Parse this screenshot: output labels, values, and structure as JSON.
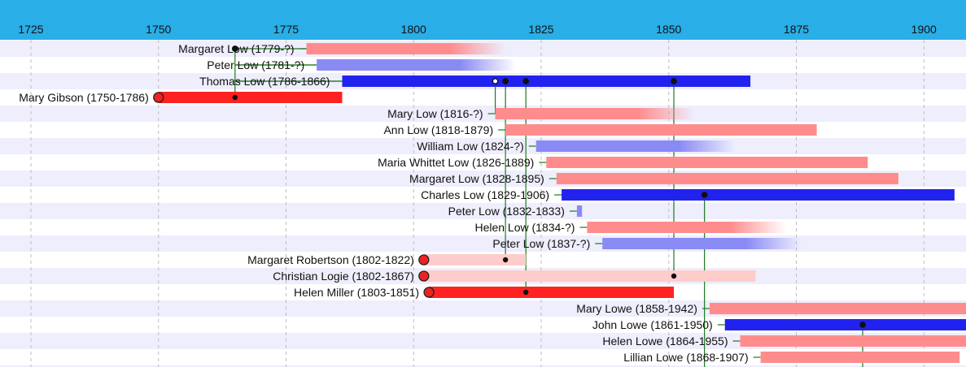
{
  "chart_data": {
    "type": "timeline",
    "title": "",
    "xlabel": "",
    "ylabel": "",
    "x_ticks": [
      "1725",
      "1750",
      "1775",
      "1800",
      "1825",
      "1850",
      "1875",
      "1900"
    ],
    "colors": {
      "header": "#29aee8",
      "male": "#2222ee",
      "male_light": "#8a8af5",
      "female": "#ff2222",
      "female_light": "#ff8c8c",
      "female_pale": "#ffcccc",
      "row_alt": "#eeeefd",
      "connector": "#1e7a1e"
    },
    "people": [
      {
        "label": "Margaret Low (1779-?)",
        "start": 1779,
        "end": 1818,
        "color": "female_light",
        "open_end": true
      },
      {
        "label": "Peter Low (1781-?)",
        "start": 1781,
        "end": 1820,
        "color": "male_light",
        "open_end": true
      },
      {
        "label": "Thomas Low (1786-1866)",
        "start": 1786,
        "end": 1866,
        "color": "male"
      },
      {
        "label": "Mary Gibson (1750-1786)",
        "start": 1750,
        "end": 1786,
        "color": "female",
        "marker": "start"
      },
      {
        "label": "Mary Low (1816-?)",
        "start": 1816,
        "end": 1855,
        "color": "female_light",
        "open_end": true
      },
      {
        "label": "Ann Low (1818-1879)",
        "start": 1818,
        "end": 1879,
        "color": "female_light"
      },
      {
        "label": "William Low (1824-?)",
        "start": 1824,
        "end": 1863,
        "color": "male_light",
        "open_end": true
      },
      {
        "label": "Maria Whittet Low (1826-1889)",
        "start": 1826,
        "end": 1889,
        "color": "female_light"
      },
      {
        "label": "Margaret Low (1828-1895)",
        "start": 1828,
        "end": 1895,
        "color": "female_light"
      },
      {
        "label": "Charles Low (1829-1906)",
        "start": 1829,
        "end": 1906,
        "color": "male"
      },
      {
        "label": "Peter Low (1832-1833)",
        "start": 1832,
        "end": 1833,
        "color": "male_light"
      },
      {
        "label": "Helen Low (1834-?)",
        "start": 1834,
        "end": 1873,
        "color": "female_light",
        "open_end": true
      },
      {
        "label": "Peter Low (1837-?)",
        "start": 1837,
        "end": 1876,
        "color": "male_light",
        "open_end": true
      },
      {
        "label": "Margaret Robertson (1802-1822)",
        "start": 1802,
        "end": 1822,
        "color": "female_pale",
        "marker": "start"
      },
      {
        "label": "Christian Logie (1802-1867)",
        "start": 1802,
        "end": 1867,
        "color": "female_pale",
        "marker": "start"
      },
      {
        "label": "Helen Miller (1803-1851)",
        "start": 1803,
        "end": 1851,
        "color": "female",
        "marker": "start"
      },
      {
        "label": "Mary Lowe (1858-1942)",
        "start": 1858,
        "end": 1942,
        "color": "female_light"
      },
      {
        "label": "John Lowe (1861-1950)",
        "start": 1861,
        "end": 1950,
        "color": "male"
      },
      {
        "label": "Helen Lowe (1864-1955)",
        "start": 1864,
        "end": 1955,
        "color": "female_light"
      },
      {
        "label": "Lillian Lowe (1868-1907)",
        "start": 1868,
        "end": 1907,
        "color": "female_light"
      }
    ],
    "marriages": [
      {
        "year": 1765,
        "from_row": 0,
        "to_row": 3
      },
      {
        "year": 1816,
        "from_row": 2,
        "to_row": 4,
        "open": true
      },
      {
        "year": 1818,
        "from_row": 2,
        "to_row": 13
      },
      {
        "year": 1822,
        "from_row": 2,
        "to_row": 15
      },
      {
        "year": 1851,
        "from_row": 2,
        "to_row": 14
      },
      {
        "year": 1857,
        "from_row": 9,
        "to_row": 20
      },
      {
        "year": 1888,
        "from_row": 17,
        "to_row": 20
      }
    ]
  }
}
